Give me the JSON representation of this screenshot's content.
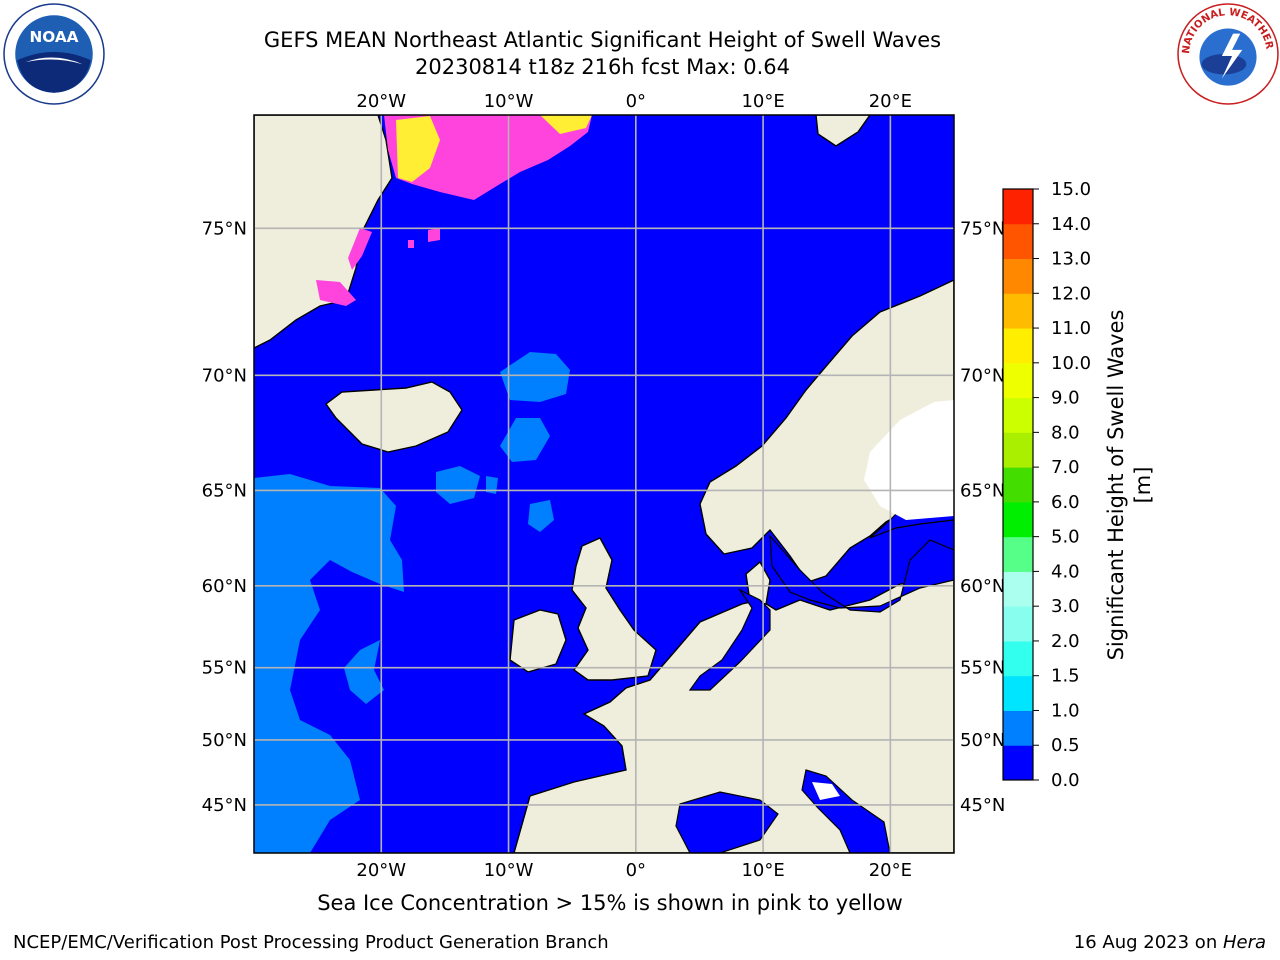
{
  "header": {
    "title_line1": "GEFS MEAN Northeast Atlantic Significant Height of Swell Waves",
    "title_line2": "20230814 t18z 216h fcst   Max: 0.64"
  },
  "logos": {
    "left": "noaa-logo",
    "left_text": "NOAA",
    "right": "nws-logo",
    "right_text": "NATIONAL WEATHER SERVICE"
  },
  "map": {
    "lon_range": [
      -30,
      25
    ],
    "lat_range": [
      41,
      78
    ],
    "lon_ticks": [
      "20°W",
      "10°W",
      "0°",
      "10°E",
      "20°E"
    ],
    "lat_ticks": [
      "75°N",
      "70°N",
      "65°N",
      "60°N",
      "55°N",
      "50°N",
      "45°N"
    ],
    "grid": true,
    "ocean_color": "#0000ff",
    "swell_color": "#0080ff",
    "land_color": "#efeedd",
    "ice_colors": [
      "#ff44dd",
      "#ffee33"
    ]
  },
  "colorbar": {
    "label": "Significant Height of Swell Waves [m]",
    "ticks": [
      "0.0",
      "0.5",
      "1.0",
      "1.5",
      "2.0",
      "3.0",
      "4.0",
      "5.0",
      "6.0",
      "7.0",
      "8.0",
      "9.0",
      "10.0",
      "11.0",
      "12.0",
      "13.0",
      "14.0",
      "15.0"
    ],
    "colors": [
      "#0000ff",
      "#0080ff",
      "#00e5ff",
      "#33ffee",
      "#88ffee",
      "#aaffee",
      "#55ff88",
      "#00ee00",
      "#44dd00",
      "#aaee00",
      "#ccff00",
      "#eeff00",
      "#ffee00",
      "#ffbb00",
      "#ff8800",
      "#ff5500",
      "#ff2200",
      "#ff0000"
    ]
  },
  "caption": "Sea Ice Concentration > 15% is shown in pink to yellow",
  "footer": {
    "left": "NCEP/EMC/Verification Post Processing Product Generation Branch",
    "right_prefix": "16 Aug 2023 on ",
    "right_italic": "Hera"
  }
}
